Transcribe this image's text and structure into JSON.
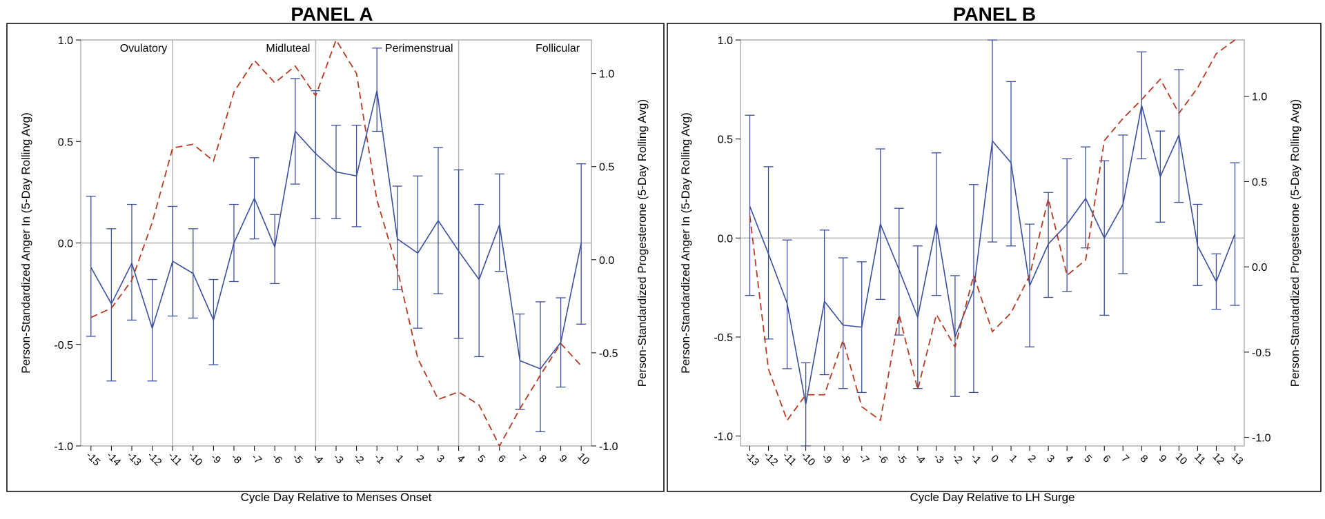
{
  "figure": {
    "colors": {
      "anger": "#3A4E9C",
      "progesterone": "#B53A22",
      "reference": "#B4B4B4",
      "frame": "#000000"
    }
  },
  "chart_data": [
    {
      "type": "line",
      "title": "PANEL A",
      "xlabel": "Cycle Day Relative to Menses Onset",
      "ylabel": "Person-Standardized Anger In (5-Day Rolling Avg)",
      "y2label": "Person-Standardized Progesterone (5-Day Rolling Avg)",
      "x": [
        -15,
        -14,
        -13,
        -12,
        -11,
        -10,
        -9,
        -8,
        -7,
        -6,
        -5,
        -4,
        -3,
        -2,
        -1,
        1,
        2,
        3,
        4,
        5,
        6,
        7,
        8,
        9,
        10
      ],
      "xticklabels": [
        "-15",
        "-14",
        "-13",
        "-12",
        "-11",
        "-10",
        "-9",
        "-8",
        "-7",
        "-6",
        "-5",
        "-4",
        "-3",
        "-2",
        "-1",
        "1",
        "2",
        "3",
        "4",
        "5",
        "6",
        "7",
        "8",
        "9",
        "10"
      ],
      "ylim": [
        -1.0,
        1.0
      ],
      "yticks": [
        -1.0,
        -0.5,
        0.0,
        0.5,
        1.0
      ],
      "yticklabels": [
        "-1.0",
        "-0.5",
        "0.0",
        "0.5",
        "1.0"
      ],
      "y2lim": [
        -1.0,
        1.18
      ],
      "y2ticks": [
        -1.0,
        -0.5,
        0.0,
        0.5,
        1.0
      ],
      "y2ticklabels": [
        "-1.0",
        "-0.5",
        "0.0",
        "0.5",
        "1.0"
      ],
      "reference_line": 0,
      "phases": [
        {
          "label": "Ovulatory",
          "start": -15.5,
          "end": -11
        },
        {
          "label": "Midluteal",
          "start": -11,
          "end": -4
        },
        {
          "label": "Perimenstrual",
          "start": -4,
          "end": 4
        },
        {
          "label": "Follicular",
          "start": 4,
          "end": 10.2
        }
      ],
      "series": [
        {
          "name": "Anger In",
          "axis": "left",
          "style": "solid",
          "values": [
            -0.12,
            -0.3,
            -0.1,
            -0.42,
            -0.09,
            -0.15,
            -0.38,
            0.0,
            0.22,
            -0.02,
            0.55,
            0.44,
            0.35,
            0.33,
            0.75,
            0.02,
            -0.05,
            0.11,
            -0.04,
            -0.18,
            0.09,
            -0.58,
            -0.62,
            -0.49,
            0.0
          ],
          "lower": [
            -0.46,
            -0.68,
            -0.38,
            -0.68,
            -0.36,
            -0.37,
            -0.6,
            -0.19,
            0.02,
            -0.2,
            0.29,
            0.12,
            0.12,
            0.08,
            0.55,
            -0.23,
            -0.42,
            -0.25,
            -0.47,
            -0.56,
            -0.14,
            -0.82,
            -0.93,
            -0.71,
            -0.4
          ],
          "upper": [
            0.23,
            0.07,
            0.19,
            -0.18,
            0.18,
            0.07,
            -0.18,
            0.19,
            0.42,
            0.14,
            0.81,
            0.75,
            0.58,
            0.58,
            0.96,
            0.28,
            0.33,
            0.47,
            0.36,
            0.19,
            0.34,
            -0.35,
            -0.29,
            -0.27,
            0.39
          ]
        },
        {
          "name": "Progesterone",
          "axis": "right",
          "style": "dashed",
          "values": [
            -0.31,
            -0.26,
            -0.11,
            0.2,
            0.6,
            0.62,
            0.53,
            0.9,
            1.07,
            0.95,
            1.04,
            0.88,
            1.18,
            1.0,
            0.32,
            -0.05,
            -0.53,
            -0.75,
            -0.71,
            -0.78,
            -1.0,
            -0.8,
            -0.62,
            -0.45,
            -0.57
          ]
        }
      ]
    },
    {
      "type": "line",
      "title": "PANEL B",
      "xlabel": "Cycle Day Relative to LH Surge",
      "ylabel": "Person-Standardized Anger In (5-Day Rolling Avg)",
      "y2label": "Person-Standardized Progesterone (5-Day Rolling Avg)",
      "x": [
        -13,
        -12,
        -11,
        -10,
        -9,
        -8,
        -7,
        -6,
        -5,
        -4,
        -3,
        -2,
        -1,
        0,
        1,
        2,
        3,
        4,
        5,
        6,
        7,
        8,
        9,
        10,
        11,
        12,
        13
      ],
      "xticklabels": [
        "-13",
        "-12",
        "-11",
        "-10",
        "-9",
        "-8",
        "-7",
        "-6",
        "-5",
        "-4",
        "-3",
        "-2",
        "-1",
        "0",
        "1",
        "2",
        "3",
        "4",
        "5",
        "6",
        "7",
        "8",
        "9",
        "10",
        "11",
        "12",
        "13"
      ],
      "ylim": [
        -1.05,
        1.0
      ],
      "yticks": [
        -1.0,
        -0.5,
        0.0,
        0.5,
        1.0
      ],
      "yticklabels": [
        "-1.0",
        "-0.5",
        "0.0",
        "0.5",
        "1.0"
      ],
      "y2lim": [
        -1.05,
        1.33
      ],
      "y2ticks": [
        -1.0,
        -0.5,
        0.0,
        0.5,
        1.0
      ],
      "y2ticklabels": [
        "-1.0",
        "-0.5",
        "0.0",
        "0.5",
        "1.0"
      ],
      "reference_line": 0,
      "phases": [],
      "series": [
        {
          "name": "Anger In",
          "axis": "left",
          "style": "solid",
          "values": [
            0.16,
            -0.08,
            -0.33,
            -0.84,
            -0.32,
            -0.44,
            -0.45,
            0.07,
            -0.16,
            -0.4,
            0.07,
            -0.5,
            -0.26,
            0.49,
            0.38,
            -0.24,
            -0.03,
            0.07,
            0.2,
            0.0,
            0.17,
            0.67,
            0.31,
            0.52,
            -0.04,
            -0.22,
            0.02
          ],
          "lower": [
            -0.29,
            -0.51,
            -0.66,
            -1.05,
            -0.69,
            -0.76,
            -0.78,
            -0.31,
            -0.49,
            -0.76,
            -0.29,
            -0.8,
            -0.78,
            -0.02,
            -0.04,
            -0.55,
            -0.3,
            -0.27,
            -0.05,
            -0.39,
            -0.18,
            0.4,
            0.08,
            0.18,
            -0.24,
            -0.36,
            -0.34
          ],
          "upper": [
            0.62,
            0.36,
            -0.01,
            -0.63,
            0.04,
            -0.1,
            -0.12,
            0.45,
            0.15,
            -0.04,
            0.43,
            -0.19,
            0.27,
            1.0,
            0.79,
            0.07,
            0.23,
            0.4,
            0.46,
            0.39,
            0.52,
            0.94,
            0.54,
            0.85,
            0.17,
            -0.08,
            0.38
          ]
        },
        {
          "name": "Progesterone",
          "axis": "right",
          "style": "dashed",
          "values": [
            0.3,
            -0.6,
            -0.9,
            -0.75,
            -0.75,
            -0.43,
            -0.82,
            -0.9,
            -0.28,
            -0.72,
            -0.28,
            -0.47,
            -0.05,
            -0.38,
            -0.27,
            -0.05,
            0.4,
            -0.05,
            0.04,
            0.74,
            0.87,
            0.98,
            1.1,
            0.9,
            1.05,
            1.25,
            1.33
          ]
        }
      ]
    }
  ]
}
